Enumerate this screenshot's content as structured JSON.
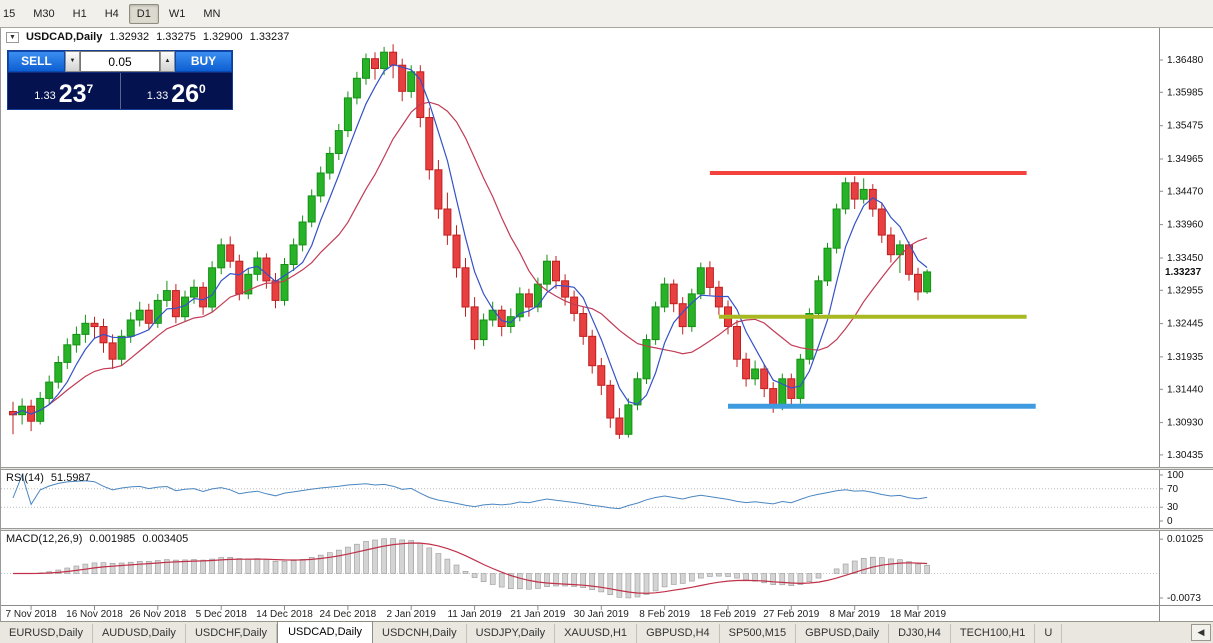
{
  "toolbar": {
    "timeframe_buttons": [
      {
        "label": "15",
        "active": false
      },
      {
        "label": "M30",
        "active": false
      },
      {
        "label": "H1",
        "active": false
      },
      {
        "label": "H4",
        "active": false
      },
      {
        "label": "D1",
        "active": true
      },
      {
        "label": "W1",
        "active": false
      },
      {
        "label": "MN",
        "active": false
      }
    ]
  },
  "chart": {
    "symbol_title": "USDCAD,Daily",
    "collapse_icon": "▼",
    "ohlc": {
      "open": "1.32932",
      "high": "1.33275",
      "low": "1.32900",
      "close": "1.33237"
    },
    "current_price_label": "1.33237",
    "price_axis_labels": [
      "1.36480",
      "1.35985",
      "1.35475",
      "1.34965",
      "1.34470",
      "1.33960",
      "1.33450",
      "1.32955",
      "1.32445",
      "1.31935",
      "1.31440",
      "1.30930",
      "1.30435"
    ]
  },
  "trade_panel": {
    "sell_label": "SELL",
    "buy_label": "BUY",
    "volume": "0.05",
    "volume_down_icon": "▼",
    "volume_up_icon": "▲",
    "sell_price": {
      "prefix": "1.33",
      "big": "23",
      "sup": "7"
    },
    "buy_price": {
      "prefix": "1.33",
      "big": "26",
      "sup": "0"
    }
  },
  "rsi": {
    "label": "RSI(14)",
    "value": "51.5987",
    "axis_labels": [
      "100",
      "70",
      "30",
      "0"
    ],
    "axis_values": [
      100,
      70,
      30,
      0
    ],
    "levels": [
      70,
      30
    ]
  },
  "macd": {
    "label": "MACD(12,26,9)",
    "value_macd": "0.001985",
    "value_signal": "0.003405",
    "axis_labels": [
      {
        "value": 0.01025,
        "label": "0.01025"
      },
      {
        "value": -0.0073,
        "label": "-0.0073"
      }
    ]
  },
  "chart_data": {
    "type": "candlestick",
    "symbol": "USDCAD",
    "timeframe": "Daily",
    "price_axis": {
      "min": 1.3025,
      "max": 1.3697
    },
    "ma_periods": {
      "fast": 5,
      "slow": 13
    },
    "colors": {
      "up": "#27b227",
      "up_border": "#149114",
      "down": "#e84040",
      "down_border": "#c01f1f",
      "ma_fast": "#3452c8",
      "ma_slow": "#c23b55",
      "rsi_line": "#4a86c0",
      "macd_hist_fill": "#d4d4d4",
      "macd_hist_stroke": "#9a9a9a",
      "macd_signal": "#c03048",
      "hline_red": "#f4433c",
      "hline_olive": "#a8b820",
      "hline_blue": "#3e9be0"
    },
    "candles": [
      [
        1.311,
        1.3125,
        1.3075,
        1.3105
      ],
      [
        1.3105,
        1.313,
        1.309,
        1.3118
      ],
      [
        1.3118,
        1.3128,
        1.308,
        1.3095
      ],
      [
        1.3095,
        1.314,
        1.309,
        1.313
      ],
      [
        1.313,
        1.3165,
        1.312,
        1.3155
      ],
      [
        1.3155,
        1.3195,
        1.3145,
        1.3185
      ],
      [
        1.3185,
        1.3222,
        1.3175,
        1.3212
      ],
      [
        1.3212,
        1.324,
        1.32,
        1.3228
      ],
      [
        1.3228,
        1.3258,
        1.3215,
        1.3245
      ],
      [
        1.3245,
        1.3255,
        1.3222,
        1.324
      ],
      [
        1.324,
        1.3252,
        1.32,
        1.3215
      ],
      [
        1.3215,
        1.3228,
        1.3175,
        1.319
      ],
      [
        1.319,
        1.3235,
        1.318,
        1.3225
      ],
      [
        1.3225,
        1.3262,
        1.3215,
        1.325
      ],
      [
        1.325,
        1.3278,
        1.324,
        1.3265
      ],
      [
        1.3265,
        1.3275,
        1.3235,
        1.3245
      ],
      [
        1.3245,
        1.329,
        1.3238,
        1.328
      ],
      [
        1.328,
        1.331,
        1.327,
        1.3295
      ],
      [
        1.3295,
        1.3305,
        1.3245,
        1.3255
      ],
      [
        1.3255,
        1.3295,
        1.3248,
        1.3285
      ],
      [
        1.3285,
        1.3312,
        1.3275,
        1.33
      ],
      [
        1.33,
        1.3308,
        1.3258,
        1.327
      ],
      [
        1.327,
        1.334,
        1.3262,
        1.333
      ],
      [
        1.333,
        1.3375,
        1.332,
        1.3365
      ],
      [
        1.3365,
        1.3378,
        1.333,
        1.334
      ],
      [
        1.334,
        1.335,
        1.328,
        1.329
      ],
      [
        1.329,
        1.333,
        1.3282,
        1.332
      ],
      [
        1.332,
        1.3355,
        1.331,
        1.3345
      ],
      [
        1.3345,
        1.3352,
        1.3298,
        1.331
      ],
      [
        1.331,
        1.3322,
        1.3268,
        1.328
      ],
      [
        1.328,
        1.3345,
        1.3272,
        1.3335
      ],
      [
        1.3335,
        1.3375,
        1.3325,
        1.3365
      ],
      [
        1.3365,
        1.341,
        1.3355,
        1.34
      ],
      [
        1.34,
        1.345,
        1.3392,
        1.344
      ],
      [
        1.344,
        1.3485,
        1.343,
        1.3475
      ],
      [
        1.3475,
        1.3515,
        1.3465,
        1.3505
      ],
      [
        1.3505,
        1.355,
        1.3495,
        1.354
      ],
      [
        1.354,
        1.36,
        1.353,
        1.359
      ],
      [
        1.359,
        1.363,
        1.358,
        1.362
      ],
      [
        1.362,
        1.3658,
        1.361,
        1.365
      ],
      [
        1.365,
        1.366,
        1.3618,
        1.3635
      ],
      [
        1.3635,
        1.3668,
        1.3625,
        1.366
      ],
      [
        1.366,
        1.3672,
        1.362,
        1.364
      ],
      [
        1.364,
        1.365,
        1.3585,
        1.36
      ],
      [
        1.36,
        1.364,
        1.359,
        1.363
      ],
      [
        1.363,
        1.364,
        1.3545,
        1.356
      ],
      [
        1.356,
        1.3575,
        1.3465,
        1.348
      ],
      [
        1.348,
        1.3495,
        1.3405,
        1.342
      ],
      [
        1.342,
        1.3445,
        1.3365,
        1.338
      ],
      [
        1.338,
        1.3395,
        1.3315,
        1.333
      ],
      [
        1.333,
        1.3345,
        1.3255,
        1.327
      ],
      [
        1.327,
        1.3285,
        1.3205,
        1.322
      ],
      [
        1.322,
        1.326,
        1.321,
        1.325
      ],
      [
        1.325,
        1.3278,
        1.324,
        1.3265
      ],
      [
        1.3265,
        1.3272,
        1.3225,
        1.324
      ],
      [
        1.324,
        1.3268,
        1.323,
        1.3255
      ],
      [
        1.3255,
        1.33,
        1.3248,
        1.329
      ],
      [
        1.329,
        1.3298,
        1.3255,
        1.327
      ],
      [
        1.327,
        1.3315,
        1.3262,
        1.3305
      ],
      [
        1.3305,
        1.335,
        1.3295,
        1.334
      ],
      [
        1.334,
        1.3348,
        1.3298,
        1.331
      ],
      [
        1.331,
        1.332,
        1.3272,
        1.3285
      ],
      [
        1.3285,
        1.3295,
        1.3248,
        1.326
      ],
      [
        1.326,
        1.327,
        1.3212,
        1.3225
      ],
      [
        1.3225,
        1.3235,
        1.3168,
        1.318
      ],
      [
        1.318,
        1.3192,
        1.3135,
        1.315
      ],
      [
        1.315,
        1.3158,
        1.3085,
        1.31
      ],
      [
        1.31,
        1.3115,
        1.3068,
        1.3075
      ],
      [
        1.3075,
        1.313,
        1.307,
        1.312
      ],
      [
        1.312,
        1.317,
        1.3112,
        1.316
      ],
      [
        1.316,
        1.3228,
        1.3152,
        1.322
      ],
      [
        1.322,
        1.3278,
        1.3212,
        1.327
      ],
      [
        1.327,
        1.3315,
        1.3262,
        1.3305
      ],
      [
        1.3305,
        1.3312,
        1.3262,
        1.3275
      ],
      [
        1.3275,
        1.3285,
        1.3228,
        1.324
      ],
      [
        1.324,
        1.3298,
        1.3232,
        1.329
      ],
      [
        1.329,
        1.3338,
        1.3282,
        1.333
      ],
      [
        1.333,
        1.334,
        1.3288,
        1.33
      ],
      [
        1.33,
        1.331,
        1.3258,
        1.327
      ],
      [
        1.327,
        1.328,
        1.3228,
        1.324
      ],
      [
        1.324,
        1.325,
        1.3178,
        1.319
      ],
      [
        1.319,
        1.32,
        1.3148,
        1.316
      ],
      [
        1.316,
        1.3188,
        1.315,
        1.3175
      ],
      [
        1.3175,
        1.3182,
        1.3132,
        1.3145
      ],
      [
        1.3145,
        1.3155,
        1.3108,
        1.312
      ],
      [
        1.312,
        1.3168,
        1.3112,
        1.316
      ],
      [
        1.316,
        1.3168,
        1.3118,
        1.313
      ],
      [
        1.313,
        1.3198,
        1.3122,
        1.319
      ],
      [
        1.319,
        1.3268,
        1.3182,
        1.326
      ],
      [
        1.326,
        1.3318,
        1.3252,
        1.331
      ],
      [
        1.331,
        1.3368,
        1.3302,
        1.336
      ],
      [
        1.336,
        1.3428,
        1.3352,
        1.342
      ],
      [
        1.342,
        1.3468,
        1.3412,
        1.346
      ],
      [
        1.346,
        1.347,
        1.342,
        1.3435
      ],
      [
        1.3435,
        1.3467,
        1.3428,
        1.345
      ],
      [
        1.345,
        1.3458,
        1.3408,
        1.342
      ],
      [
        1.342,
        1.343,
        1.3368,
        1.338
      ],
      [
        1.338,
        1.3392,
        1.3338,
        1.335
      ],
      [
        1.335,
        1.3372,
        1.3322,
        1.3365
      ],
      [
        1.3365,
        1.337,
        1.331,
        1.332
      ],
      [
        1.332,
        1.333,
        1.328,
        1.3293
      ],
      [
        1.32932,
        1.33275,
        1.329,
        1.33237
      ]
    ],
    "date_labels": [
      {
        "i": 2,
        "label": "7 Nov 2018"
      },
      {
        "i": 9,
        "label": "16 Nov 2018"
      },
      {
        "i": 16,
        "label": "26 Nov 2018"
      },
      {
        "i": 23,
        "label": "5 Dec 2018"
      },
      {
        "i": 30,
        "label": "14 Dec 2018"
      },
      {
        "i": 37,
        "label": "24 Dec 2018"
      },
      {
        "i": 44,
        "label": "2 Jan 2019"
      },
      {
        "i": 51,
        "label": "11 Jan 2019"
      },
      {
        "i": 58,
        "label": "21 Jan 2019"
      },
      {
        "i": 65,
        "label": "30 Jan 2019"
      },
      {
        "i": 72,
        "label": "8 Feb 2019"
      },
      {
        "i": 79,
        "label": "18 Feb 2019"
      },
      {
        "i": 86,
        "label": "27 Feb 2019"
      },
      {
        "i": 93,
        "label": "8 Mar 2019"
      },
      {
        "i": 100,
        "label": "18 Mar 2019"
      }
    ],
    "hlines": [
      {
        "name": "resistance-line-red",
        "price": 1.3475,
        "from_index": 77,
        "to_index": 112,
        "color": "#f4433c",
        "width": 4
      },
      {
        "name": "support-line-olive",
        "price": 1.3255,
        "from_index": 78,
        "to_index": 112,
        "color": "#a8b820",
        "width": 4
      },
      {
        "name": "support-line-blue",
        "price": 1.3118,
        "from_index": 79,
        "to_index": 113,
        "color": "#3e9be0",
        "width": 5
      }
    ]
  },
  "tabs": {
    "scroll_icon": "◀",
    "items": [
      {
        "label": "EURUSD,Daily",
        "active": false
      },
      {
        "label": "AUDUSD,Daily",
        "active": false
      },
      {
        "label": "USDCHF,Daily",
        "active": false
      },
      {
        "label": "USDCAD,Daily",
        "active": true
      },
      {
        "label": "USDCNH,Daily",
        "active": false
      },
      {
        "label": "USDJPY,Daily",
        "active": false
      },
      {
        "label": "XAUUSD,H1",
        "active": false
      },
      {
        "label": "GBPUSD,H4",
        "active": false
      },
      {
        "label": "SP500,M15",
        "active": false
      },
      {
        "label": "GBPUSD,Daily",
        "active": false
      },
      {
        "label": "DJ30,H4",
        "active": false
      },
      {
        "label": "TECH100,H1",
        "active": false
      },
      {
        "label": "U",
        "active": false
      }
    ]
  }
}
